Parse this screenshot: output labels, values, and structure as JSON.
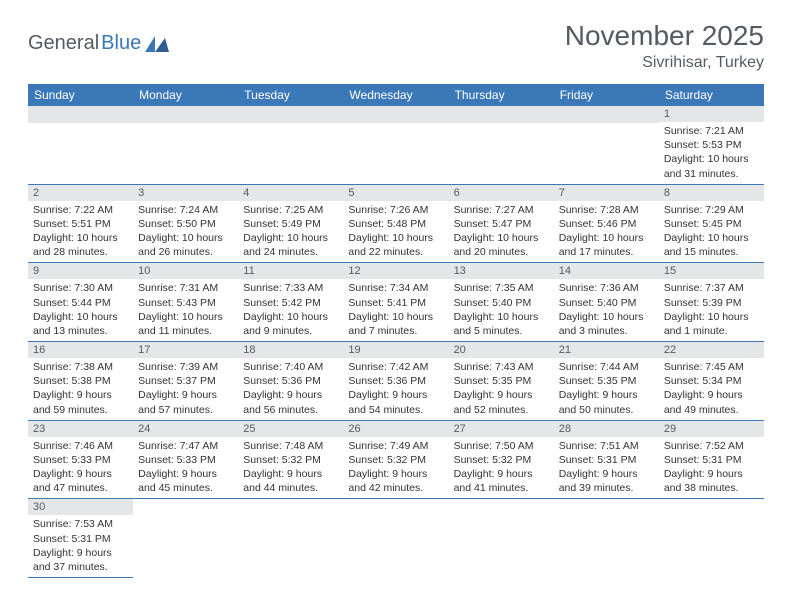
{
  "logo": {
    "text1": "General",
    "text2": "Blue"
  },
  "title": "November 2025",
  "location": "Sivrihisar, Turkey",
  "colors": {
    "header_bg": "#3b78b8",
    "header_fg": "#ffffff",
    "daynum_bg": "#e4e6e8",
    "text": "#555b62",
    "border": "#3b78b8"
  },
  "weekdays": [
    "Sunday",
    "Monday",
    "Tuesday",
    "Wednesday",
    "Thursday",
    "Friday",
    "Saturday"
  ],
  "first_weekday_index": 6,
  "days": [
    {
      "n": 1,
      "sunrise": "7:21 AM",
      "sunset": "5:53 PM",
      "daylight": "10 hours and 31 minutes."
    },
    {
      "n": 2,
      "sunrise": "7:22 AM",
      "sunset": "5:51 PM",
      "daylight": "10 hours and 28 minutes."
    },
    {
      "n": 3,
      "sunrise": "7:24 AM",
      "sunset": "5:50 PM",
      "daylight": "10 hours and 26 minutes."
    },
    {
      "n": 4,
      "sunrise": "7:25 AM",
      "sunset": "5:49 PM",
      "daylight": "10 hours and 24 minutes."
    },
    {
      "n": 5,
      "sunrise": "7:26 AM",
      "sunset": "5:48 PM",
      "daylight": "10 hours and 22 minutes."
    },
    {
      "n": 6,
      "sunrise": "7:27 AM",
      "sunset": "5:47 PM",
      "daylight": "10 hours and 20 minutes."
    },
    {
      "n": 7,
      "sunrise": "7:28 AM",
      "sunset": "5:46 PM",
      "daylight": "10 hours and 17 minutes."
    },
    {
      "n": 8,
      "sunrise": "7:29 AM",
      "sunset": "5:45 PM",
      "daylight": "10 hours and 15 minutes."
    },
    {
      "n": 9,
      "sunrise": "7:30 AM",
      "sunset": "5:44 PM",
      "daylight": "10 hours and 13 minutes."
    },
    {
      "n": 10,
      "sunrise": "7:31 AM",
      "sunset": "5:43 PM",
      "daylight": "10 hours and 11 minutes."
    },
    {
      "n": 11,
      "sunrise": "7:33 AM",
      "sunset": "5:42 PM",
      "daylight": "10 hours and 9 minutes."
    },
    {
      "n": 12,
      "sunrise": "7:34 AM",
      "sunset": "5:41 PM",
      "daylight": "10 hours and 7 minutes."
    },
    {
      "n": 13,
      "sunrise": "7:35 AM",
      "sunset": "5:40 PM",
      "daylight": "10 hours and 5 minutes."
    },
    {
      "n": 14,
      "sunrise": "7:36 AM",
      "sunset": "5:40 PM",
      "daylight": "10 hours and 3 minutes."
    },
    {
      "n": 15,
      "sunrise": "7:37 AM",
      "sunset": "5:39 PM",
      "daylight": "10 hours and 1 minute."
    },
    {
      "n": 16,
      "sunrise": "7:38 AM",
      "sunset": "5:38 PM",
      "daylight": "9 hours and 59 minutes."
    },
    {
      "n": 17,
      "sunrise": "7:39 AM",
      "sunset": "5:37 PM",
      "daylight": "9 hours and 57 minutes."
    },
    {
      "n": 18,
      "sunrise": "7:40 AM",
      "sunset": "5:36 PM",
      "daylight": "9 hours and 56 minutes."
    },
    {
      "n": 19,
      "sunrise": "7:42 AM",
      "sunset": "5:36 PM",
      "daylight": "9 hours and 54 minutes."
    },
    {
      "n": 20,
      "sunrise": "7:43 AM",
      "sunset": "5:35 PM",
      "daylight": "9 hours and 52 minutes."
    },
    {
      "n": 21,
      "sunrise": "7:44 AM",
      "sunset": "5:35 PM",
      "daylight": "9 hours and 50 minutes."
    },
    {
      "n": 22,
      "sunrise": "7:45 AM",
      "sunset": "5:34 PM",
      "daylight": "9 hours and 49 minutes."
    },
    {
      "n": 23,
      "sunrise": "7:46 AM",
      "sunset": "5:33 PM",
      "daylight": "9 hours and 47 minutes."
    },
    {
      "n": 24,
      "sunrise": "7:47 AM",
      "sunset": "5:33 PM",
      "daylight": "9 hours and 45 minutes."
    },
    {
      "n": 25,
      "sunrise": "7:48 AM",
      "sunset": "5:32 PM",
      "daylight": "9 hours and 44 minutes."
    },
    {
      "n": 26,
      "sunrise": "7:49 AM",
      "sunset": "5:32 PM",
      "daylight": "9 hours and 42 minutes."
    },
    {
      "n": 27,
      "sunrise": "7:50 AM",
      "sunset": "5:32 PM",
      "daylight": "9 hours and 41 minutes."
    },
    {
      "n": 28,
      "sunrise": "7:51 AM",
      "sunset": "5:31 PM",
      "daylight": "9 hours and 39 minutes."
    },
    {
      "n": 29,
      "sunrise": "7:52 AM",
      "sunset": "5:31 PM",
      "daylight": "9 hours and 38 minutes."
    },
    {
      "n": 30,
      "sunrise": "7:53 AM",
      "sunset": "5:31 PM",
      "daylight": "9 hours and 37 minutes."
    }
  ],
  "labels": {
    "sunrise": "Sunrise:",
    "sunset": "Sunset:",
    "daylight": "Daylight:"
  }
}
